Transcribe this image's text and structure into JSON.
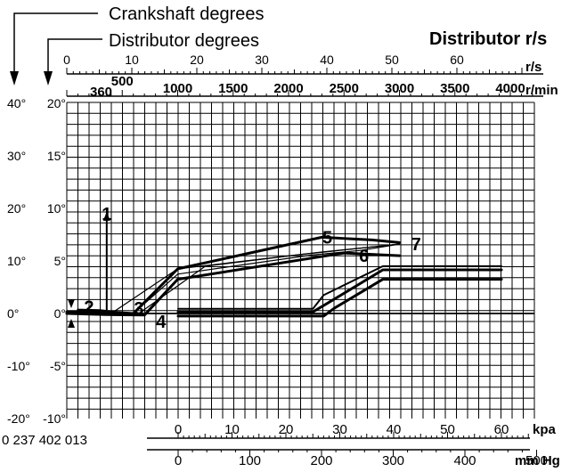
{
  "chart_data": {
    "type": "line",
    "title_crank": "Crankshaft degrees",
    "title_dist": "Distributor degrees",
    "title_rs": "Distributor r/s",
    "part_number": "0 237 402 013",
    "unit_rs": "r/s",
    "unit_rpm": "r/min",
    "unit_kpa": "kpa",
    "unit_mmhg": "mm Hg",
    "rs_ticks": [
      "0",
      "10",
      "20",
      "30",
      "40",
      "50",
      "60"
    ],
    "rs_ticks_v": [
      0,
      10,
      20,
      30,
      40,
      50,
      60
    ],
    "rpm_ticks": [
      "500",
      "1000",
      "1500",
      "2000",
      "2500",
      "3000",
      "3500",
      "4000"
    ],
    "rpm_ticks_v": [
      500,
      1000,
      1500,
      2000,
      2500,
      3000,
      3500,
      4000
    ],
    "crank_labels": [
      "40°",
      "30°",
      "20°",
      "10°",
      "0°",
      "-10°",
      "-20°"
    ],
    "crank_values": [
      40,
      30,
      20,
      10,
      0,
      -10,
      -20
    ],
    "dist_labels": [
      "20°",
      "15°",
      "10°",
      "5°",
      "0°",
      "-5°",
      "-10°"
    ],
    "dist_values": [
      20,
      15,
      10,
      5,
      0,
      -5,
      -10
    ],
    "kpa_ticks": [
      "0",
      "10",
      "20",
      "30",
      "40",
      "50",
      "60"
    ],
    "kpa_ticks_v": [
      0,
      10,
      20,
      30,
      40,
      50,
      60
    ],
    "mmhg_ticks": [
      "0",
      "100",
      "200",
      "300",
      "400",
      "500"
    ],
    "mmhg_ticks_v": [
      0,
      100,
      200,
      300,
      400,
      500
    ],
    "marker_360": "360",
    "point_labels": [
      {
        "text": "1",
        "rpm": 360,
        "deg": 19
      },
      {
        "text": "2",
        "rpm": 200,
        "deg": 1.3
      },
      {
        "text": "3",
        "rpm": 650,
        "deg": 1
      },
      {
        "text": "4",
        "rpm": 850,
        "deg": -1.5
      },
      {
        "text": "5",
        "rpm": 2350,
        "deg": 14.5
      },
      {
        "text": "6",
        "rpm": 2680,
        "deg": 11
      },
      {
        "text": "7",
        "rpm": 3150,
        "deg": 13.2
      }
    ],
    "centrifugal_series": [
      {
        "name": "upper-thick",
        "width": 3,
        "points": [
          [
            0,
            0.3
          ],
          [
            350,
            0.3
          ],
          [
            600,
            0
          ],
          [
            1000,
            8.5
          ],
          [
            2300,
            14.5
          ],
          [
            2750,
            14
          ],
          [
            3000,
            13.5
          ]
        ]
      },
      {
        "name": "lower-thick",
        "width": 3,
        "points": [
          [
            0,
            0
          ],
          [
            350,
            -0.2
          ],
          [
            700,
            -0.3
          ],
          [
            1000,
            6.5
          ],
          [
            2500,
            11.5
          ],
          [
            3000,
            11
          ]
        ]
      },
      {
        "name": "thin-a",
        "width": 1.2,
        "points": [
          [
            400,
            0
          ],
          [
            1000,
            8.5
          ],
          [
            2300,
            11.7
          ],
          [
            3000,
            13.2
          ]
        ]
      },
      {
        "name": "thin-b",
        "width": 1.2,
        "points": [
          [
            650,
            0
          ],
          [
            1250,
            9
          ],
          [
            2100,
            11.2
          ],
          [
            3000,
            13.2
          ]
        ]
      },
      {
        "name": "thin-c",
        "width": 1.2,
        "points": [
          [
            600,
            0
          ],
          [
            1000,
            7.5
          ],
          [
            2200,
            11.1
          ],
          [
            2650,
            12
          ],
          [
            3000,
            13.2
          ]
        ]
      }
    ],
    "centrifugal_extra": {
      "name": "segment-2",
      "width": 2.5,
      "points": [
        [
          100,
          0.7
        ],
        [
          300,
          0.6
        ],
        [
          550,
          0
        ]
      ]
    },
    "vacuum_series": [
      {
        "name": "upper",
        "width": 3,
        "points": [
          [
            0,
            0.3
          ],
          [
            25,
            0.3
          ],
          [
            27,
            1.5
          ],
          [
            38,
            8.3
          ],
          [
            60,
            8.3
          ]
        ]
      },
      {
        "name": "middle",
        "width": 2,
        "points": [
          [
            0,
            0.9
          ],
          [
            25,
            0.9
          ],
          [
            27,
            3.5
          ],
          [
            38,
            9
          ],
          [
            60,
            9
          ]
        ]
      },
      {
        "name": "lower",
        "width": 3,
        "points": [
          [
            0,
            -0.5
          ],
          [
            27,
            -0.5
          ],
          [
            29,
            1
          ],
          [
            38,
            6.5
          ],
          [
            60,
            6.5
          ]
        ]
      }
    ]
  }
}
